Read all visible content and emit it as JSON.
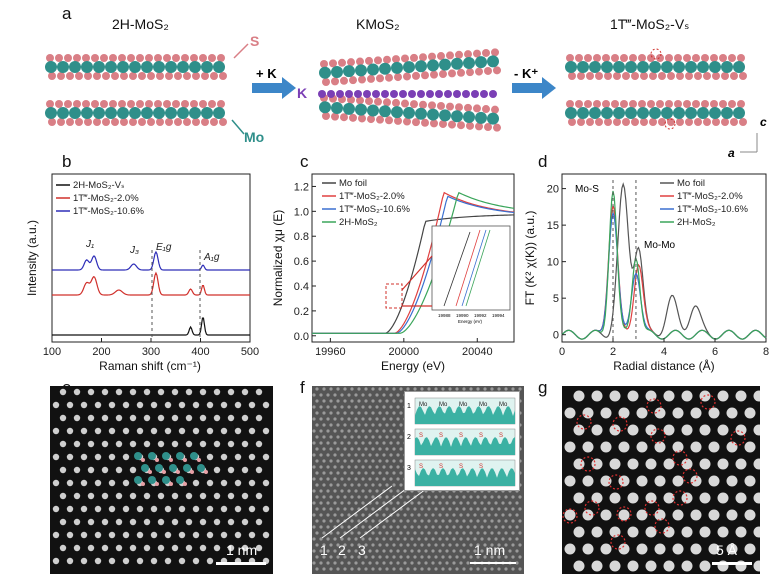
{
  "panel_labels": {
    "a": "a",
    "b": "b",
    "c": "c",
    "d": "d",
    "e": "e",
    "f": "f",
    "g": "g"
  },
  "schematic": {
    "titles": [
      "2H-MoS₂",
      "KMoS₂",
      "1T‴-MoS₂-Vₛ"
    ],
    "atom_labels": {
      "s": "S",
      "mo": "Mo",
      "k": "K"
    },
    "step1": "+ K",
    "step2": "- K⁺",
    "axis_c": "c",
    "axis_a": "a",
    "colors": {
      "mo": "#2f8f8a",
      "s": "#d97f86",
      "k": "#7b3fb5",
      "arrow": "#3c86c8"
    }
  },
  "chart_data": [
    {
      "type": "line",
      "panel": "b",
      "xlabel": "Raman shift (cm⁻¹)",
      "ylabel": "Intensity (a.u.)",
      "xlim": [
        100,
        500
      ],
      "xticks": [
        100,
        200,
        300,
        400,
        500
      ],
      "legend_position": "top-left",
      "series": [
        {
          "name": "2H-MoS₂-Vₛ",
          "color": "#111111"
        },
        {
          "name": "1T‴-MoS₂-2.0%",
          "color": "#d0302b"
        },
        {
          "name": "1T‴-MoS₂-10.6%",
          "color": "#2d2db8"
        }
      ],
      "annotations": [
        "J₁",
        "J₃",
        "E₁g",
        "A₁g"
      ],
      "peak_positions": [
        {
          "label": "E₁g",
          "x": 310
        },
        {
          "label": "A₁g",
          "x": 405
        }
      ]
    },
    {
      "type": "line",
      "panel": "c",
      "xlabel": "Energy (eV)",
      "ylabel": "Normalized χμ (E)",
      "xlim": [
        19950,
        20060
      ],
      "ylim": [
        -0.05,
        1.3
      ],
      "xticks": [
        19960,
        20000,
        20040
      ],
      "yticks": [
        0.0,
        0.2,
        0.4,
        0.6,
        0.8,
        1.0,
        1.2
      ],
      "legend_position": "top-left",
      "series": [
        {
          "name": "Mo foil",
          "color": "#444444"
        },
        {
          "name": "1T‴-MoS₂-2.0%",
          "color": "#e04040"
        },
        {
          "name": "1T‴-MoS₂-10.6%",
          "color": "#3a6fd0"
        },
        {
          "name": "2H-MoS₂",
          "color": "#3aa55a"
        }
      ],
      "inset": {
        "xlabel": "Energy (eV)",
        "xticks": [
          "19988",
          "19990",
          "19992",
          "19994"
        ]
      }
    },
    {
      "type": "line",
      "panel": "d",
      "xlabel": "Radial distance (Å)",
      "ylabel": "FT (K² χ(K)) (a.u.)",
      "xlim": [
        0,
        8
      ],
      "ylim": [
        -1,
        22
      ],
      "xticks": [
        0,
        2,
        4,
        6,
        8
      ],
      "yticks": [
        0,
        5,
        10,
        15,
        20
      ],
      "legend_position": "top-right",
      "series": [
        {
          "name": "Mo foil",
          "color": "#555555"
        },
        {
          "name": "1T‴-MoS₂-2.0%",
          "color": "#e04040"
        },
        {
          "name": "1T‴-MoS₂-10.6%",
          "color": "#3a6fd0"
        },
        {
          "name": "2H-MoS₂",
          "color": "#3aa55a"
        }
      ],
      "annotations": [
        "Mo-S",
        "Mo-Mo"
      ],
      "guide_lines_x": [
        2.0,
        2.9
      ]
    }
  ],
  "micrographs": {
    "e": {
      "scale_bar": "1 nm"
    },
    "f": {
      "scale_bar": "1 nm",
      "line_labels": [
        "1",
        "2",
        "3"
      ],
      "inset_rows": [
        "1",
        "2",
        "3"
      ],
      "inset_labels": [
        "Mo",
        "Mo",
        "Mo",
        "Mo",
        "Mo",
        "S",
        "S",
        "S",
        "S",
        "S",
        "S",
        "S",
        "S",
        "S"
      ]
    },
    "g": {
      "scale_bar": "5 Å"
    }
  }
}
